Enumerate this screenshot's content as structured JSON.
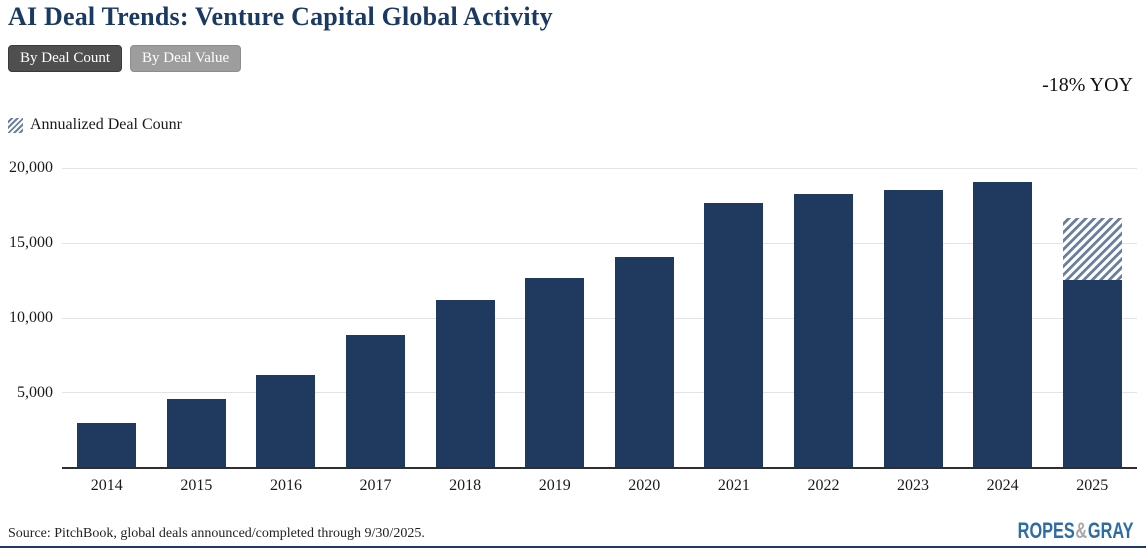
{
  "header": {
    "title": "AI Deal Trends: Venture Capital Global Activity",
    "yoy_annotation": "-18% YOY"
  },
  "toggles": [
    {
      "label": "By Deal Count",
      "active": true
    },
    {
      "label": "By Deal Value",
      "active": false
    }
  ],
  "legend": {
    "swatch": "diagonal-hatch",
    "label": "Annualized Deal Counr"
  },
  "chart_data": {
    "type": "bar",
    "title": "AI Deal Trends: Venture Capital Global Activity",
    "categories": [
      "2014",
      "2015",
      "2016",
      "2017",
      "2018",
      "2019",
      "2020",
      "2021",
      "2022",
      "2023",
      "2024",
      "2025"
    ],
    "series": [
      {
        "name": "Deal Count",
        "values": [
          3000,
          4600,
          6250,
          8900,
          11250,
          12700,
          14100,
          17700,
          18300,
          18600,
          19150,
          12550
        ]
      },
      {
        "name": "Annualized Deal Counr",
        "values": [
          null,
          null,
          null,
          null,
          null,
          null,
          null,
          null,
          null,
          null,
          null,
          16700
        ]
      }
    ],
    "ylim": [
      0,
      20600
    ],
    "yticks": [
      5000,
      10000,
      15000,
      20000
    ],
    "grid": true,
    "legend_position": "top-left",
    "annotation": "-18% YOY",
    "bar_color": "#1f3a5e",
    "hatch_color": "#6b80a0",
    "gridline_color": "#e3e3e3"
  },
  "footer": {
    "source": "Source: PitchBook, global deals announced/completed through 9/30/2025.",
    "logo": {
      "word1": "ROPES",
      "amp": "&",
      "word2": "GRAY"
    }
  }
}
